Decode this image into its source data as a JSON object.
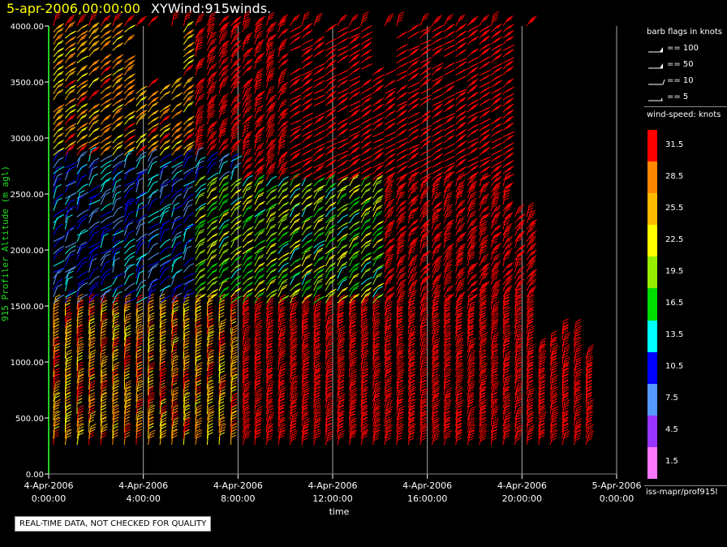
{
  "header": {
    "timestamp": "5-apr-2006,00:00:00",
    "title": "XYWind:915winds."
  },
  "chart_data": {
    "type": "wind-barb time-height plot",
    "ylabel": "915 Profiler Altitude (m agl)",
    "xlabel": "time",
    "ylim": [
      0,
      4000
    ],
    "y_ticks": [
      "0.00",
      "500.00",
      "1000.00",
      "1500.00",
      "2000.00",
      "2500.00",
      "3000.00",
      "3500.00",
      "4000.00"
    ],
    "x_ticks": [
      {
        "date": "4-Apr-2006",
        "time": "0:00:00"
      },
      {
        "date": "4-Apr-2006",
        "time": "4:00:00"
      },
      {
        "date": "4-Apr-2006",
        "time": "8:00:00"
      },
      {
        "date": "4-Apr-2006",
        "time": "12:00:00"
      },
      {
        "date": "4-Apr-2006",
        "time": "16:00:00"
      },
      {
        "date": "4-Apr-2006",
        "time": "20:00:00"
      },
      {
        "date": "5-Apr-2006",
        "time": "0:00:00"
      }
    ],
    "x_range_hours": [
      0,
      24
    ],
    "data_start_hour": 0.2,
    "data_end_hour": 23.0,
    "profile_interval_min": 30,
    "grid_vertical": true,
    "speed_regimes": [
      {
        "hours": [
          0,
          8
        ],
        "heights_m": [
          250,
          1500
        ],
        "speed_kt": [
          22,
          32
        ],
        "dir_deg": [
          180,
          200
        ]
      },
      {
        "hours": [
          0,
          8
        ],
        "heights_m": [
          1500,
          2800
        ],
        "speed_kt": [
          6,
          14
        ],
        "dir_deg": [
          200,
          260
        ]
      },
      {
        "hours": [
          0,
          6
        ],
        "heights_m": [
          2800,
          4000
        ],
        "speed_kt": [
          22,
          31
        ],
        "dir_deg": [
          230,
          250
        ]
      },
      {
        "hours": [
          6,
          14
        ],
        "heights_m": [
          1500,
          2600
        ],
        "speed_kt": [
          14,
          24
        ],
        "dir_deg": [
          220,
          250
        ]
      },
      {
        "hours": [
          8,
          24
        ],
        "heights_m": [
          250,
          1500
        ],
        "speed_kt": [
          31,
          40
        ],
        "dir_deg": [
          190,
          210
        ]
      },
      {
        "hours": [
          10,
          24
        ],
        "heights_m": [
          2600,
          4000
        ],
        "speed_kt": [
          31,
          45
        ],
        "dir_deg": [
          240,
          260
        ]
      }
    ],
    "gaps": [
      {
        "hours": [
          3.5,
          5.5
        ],
        "heights_m": [
          3500,
          4000
        ]
      },
      {
        "hours": [
          13.5,
          14.5
        ],
        "heights_m": [
          3600,
          4000
        ]
      },
      {
        "hours": [
          19.5,
          20.5
        ],
        "heights_m": [
          2300,
          4000
        ]
      },
      {
        "hours": [
          20.5,
          23.2
        ],
        "heights_m": [
          2100,
          2800
        ]
      }
    ]
  },
  "legend": {
    "barb_title": "barb flags in knots",
    "flags": [
      {
        "label": "== 100",
        "knots": 100
      },
      {
        "label": "== 50",
        "knots": 50
      },
      {
        "label": "== 10",
        "knots": 10
      },
      {
        "label": "== 5",
        "knots": 5
      }
    ],
    "speed_title": "wind-speed: knots",
    "colorbar": [
      {
        "label": "31.5",
        "color": "#ff0000"
      },
      {
        "label": "28.5",
        "color": "#ff8800"
      },
      {
        "label": "25.5",
        "color": "#ffbb00"
      },
      {
        "label": "22.5",
        "color": "#ffff00"
      },
      {
        "label": "19.5",
        "color": "#99ee00"
      },
      {
        "label": "16.5",
        "color": "#00dd00"
      },
      {
        "label": "13.5",
        "color": "#00ffff"
      },
      {
        "label": "10.5",
        "color": "#0000ff"
      },
      {
        "label": "7.5",
        "color": "#5599ff"
      },
      {
        "label": "4.5",
        "color": "#9933ff"
      },
      {
        "label": "1.5",
        "color": "#ff77ff"
      }
    ],
    "source": "iss-mapr/prof915l"
  },
  "footer": {
    "qc_note": "REAL-TIME DATA, NOT CHECKED FOR QUALITY"
  }
}
